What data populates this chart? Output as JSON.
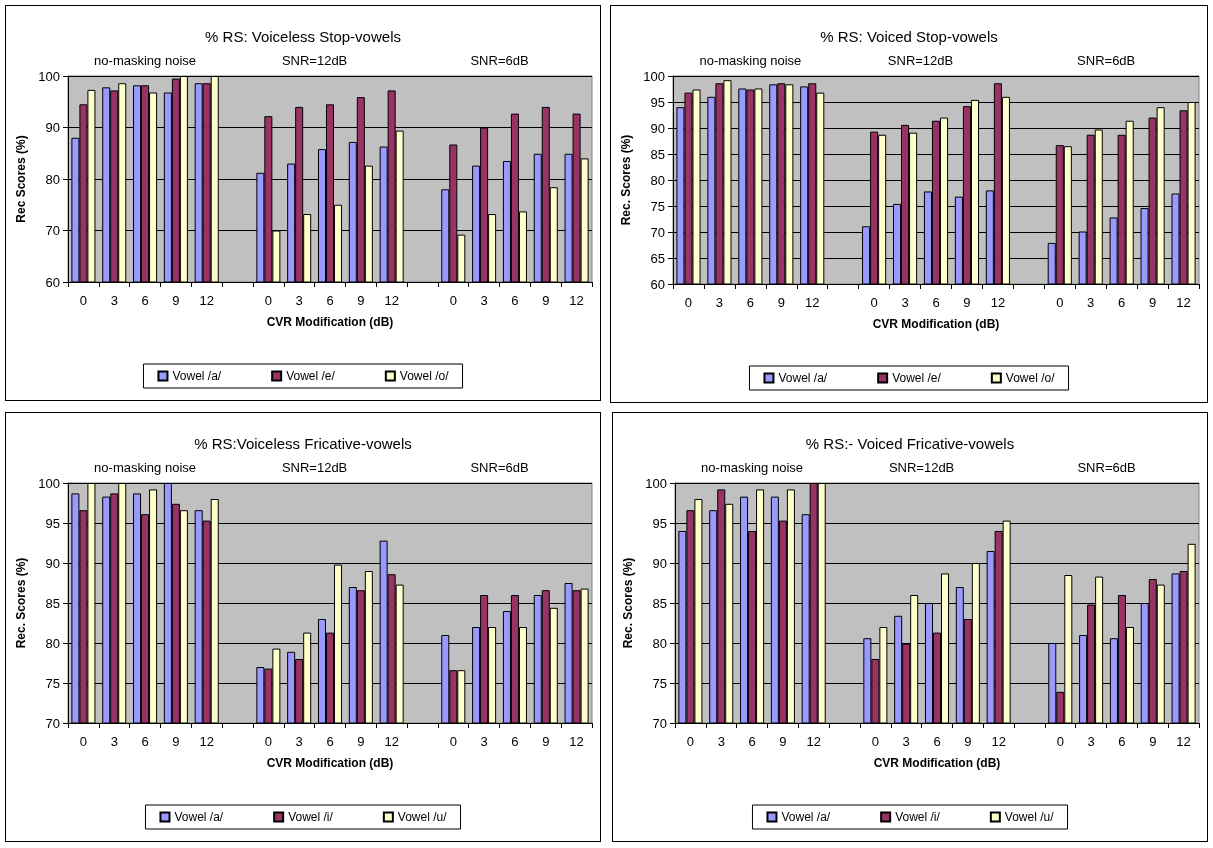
{
  "chart_data": [
    {
      "type": "bar",
      "title": "% RS: Voiceless Stop-vowels",
      "xlabel": "CVR Modification (dB)",
      "ylabel": "Rec Scores (%)",
      "annotations": [
        "no-masking noise",
        "SNR=12dB",
        "SNR=6dB"
      ],
      "categories": [
        "0",
        "3",
        "6",
        "9",
        "12",
        null,
        "0",
        "3",
        "6",
        "9",
        "12",
        null,
        "0",
        "3",
        "6",
        "9",
        "12"
      ],
      "series": [
        {
          "name": "Vowel /a/",
          "color": "#9999ff",
          "values": [
            88,
            97.8,
            98.2,
            96.8,
            98.6,
            null,
            81.2,
            83,
            85.8,
            87.2,
            86.3,
            null,
            78,
            82.6,
            83.5,
            84.9,
            84.9
          ]
        },
        {
          "name": "Vowel /e/",
          "color": "#993366",
          "values": [
            94.5,
            97.2,
            98.2,
            99.5,
            98.6,
            null,
            92.2,
            94,
            94.5,
            95.9,
            97.2,
            null,
            86.7,
            90,
            92.7,
            94,
            92.7
          ]
        },
        {
          "name": "Vowel /o/",
          "color": "#ffffcc",
          "values": [
            97.3,
            98.6,
            96.8,
            100,
            100,
            null,
            70,
            73.2,
            75,
            82.6,
            89.4,
            null,
            69.2,
            73.2,
            73.7,
            78.4,
            84
          ]
        }
      ],
      "ylim": [
        60,
        100
      ],
      "yticks": [
        60,
        70,
        80,
        90,
        100
      ],
      "grid": "y",
      "legend": "bottom"
    },
    {
      "type": "bar",
      "title": "% RS: Voiced Stop-vowels",
      "xlabel": "CVR Modification (dB)",
      "ylabel": "Rec. Scores (%)",
      "annotations": [
        "no-masking noise",
        "SNR=12dB",
        "SNR=6dB"
      ],
      "categories": [
        "0",
        "3",
        "6",
        "9",
        "12",
        null,
        "0",
        "3",
        "6",
        "9",
        "12",
        null,
        "0",
        "3",
        "6",
        "9",
        "12"
      ],
      "series": [
        {
          "name": "Vowel /a/",
          "color": "#9999ff",
          "values": [
            94,
            96,
            97.6,
            98.4,
            98,
            null,
            71.1,
            75.4,
            77.8,
            76.8,
            78,
            null,
            67.9,
            70.1,
            72.8,
            74.6,
            77.4
          ]
        },
        {
          "name": "Vowel /e/",
          "color": "#993366",
          "values": [
            96.8,
            98.6,
            97.4,
            98.6,
            98.6,
            null,
            89.3,
            90.6,
            91.4,
            94.2,
            98.6,
            null,
            86.7,
            88.7,
            88.7,
            92,
            93.4
          ]
        },
        {
          "name": "Vowel /o/",
          "color": "#ffffcc",
          "values": [
            97.4,
            99.2,
            97.6,
            98.4,
            96.8,
            null,
            88.7,
            89.1,
            92,
            95.4,
            96,
            null,
            86.5,
            89.7,
            91.4,
            94,
            95
          ]
        }
      ],
      "ylim": [
        60,
        100
      ],
      "yticks": [
        60,
        65,
        70,
        75,
        80,
        85,
        90,
        95,
        100
      ],
      "grid": "y",
      "legend": "bottom"
    },
    {
      "type": "bar",
      "title": "% RS:Voiceless Fricative-vowels",
      "xlabel": "CVR Modification (dB)",
      "ylabel": "Rec. Scores (%)",
      "annotations": [
        "no-masking noise",
        "SNR=12dB",
        "SNR=6dB"
      ],
      "categories": [
        "0",
        "3",
        "6",
        "9",
        "12",
        null,
        "0",
        "3",
        "6",
        "9",
        "12",
        null,
        "0",
        "3",
        "6",
        "9",
        "12"
      ],
      "series": [
        {
          "name": "Vowel /a/",
          "color": "#9999ff",
          "values": [
            98.7,
            98.3,
            98.7,
            100,
            96.6,
            null,
            77,
            78.9,
            83,
            87,
            92.8,
            null,
            81,
            82,
            84,
            86,
            87.5
          ]
        },
        {
          "name": "Vowel /i/",
          "color": "#993366",
          "values": [
            96.6,
            98.7,
            96.1,
            97.4,
            95.3,
            null,
            76.8,
            78,
            81.3,
            86.6,
            88.6,
            null,
            76.6,
            86,
            86,
            86.6,
            86.6
          ]
        },
        {
          "name": "Vowel /u/",
          "color": "#ffffcc",
          "values": [
            100,
            100,
            99.2,
            96.6,
            98,
            null,
            79.3,
            81.3,
            89.8,
            89,
            87.3,
            null,
            76.6,
            82,
            82,
            84.4,
            86.8
          ]
        }
      ],
      "ylim": [
        70,
        100
      ],
      "yticks": [
        70,
        75,
        80,
        85,
        90,
        95,
        100
      ],
      "grid": "y",
      "legend": "bottom"
    },
    {
      "type": "bar",
      "title": "% RS:- Voiced Fricative-vowels",
      "xlabel": "CVR Modification (dB)",
      "ylabel": "Rec. Scores (%)",
      "annotations": [
        "no-masking noise",
        "SNR=12dB",
        "SNR=6dB"
      ],
      "categories": [
        "0",
        "3",
        "6",
        "9",
        "12",
        null,
        "0",
        "3",
        "6",
        "9",
        "12",
        null,
        "0",
        "3",
        "6",
        "9",
        "12"
      ],
      "series": [
        {
          "name": "Vowel /a/",
          "color": "#9999ff",
          "values": [
            94,
            96.6,
            98.3,
            98.3,
            96.1,
            null,
            80.6,
            83.4,
            85,
            87,
            91.5,
            null,
            80,
            81,
            80.6,
            85,
            88.7
          ]
        },
        {
          "name": "Vowel /i/",
          "color": "#993366",
          "values": [
            96.6,
            99.2,
            94,
            95.3,
            100,
            null,
            78,
            79.9,
            81.3,
            83,
            94,
            null,
            73.9,
            84.8,
            86,
            88,
            89
          ]
        },
        {
          "name": "Vowel /u/",
          "color": "#ffffcc",
          "values": [
            98,
            97.4,
            99.2,
            99.2,
            100,
            null,
            82,
            86,
            88.7,
            90,
            95.3,
            null,
            88.5,
            88.3,
            82,
            87.3,
            92.4
          ]
        }
      ],
      "ylim": [
        70,
        100
      ],
      "yticks": [
        70,
        75,
        80,
        85,
        90,
        95,
        100
      ],
      "grid": "y",
      "legend": "bottom"
    }
  ]
}
